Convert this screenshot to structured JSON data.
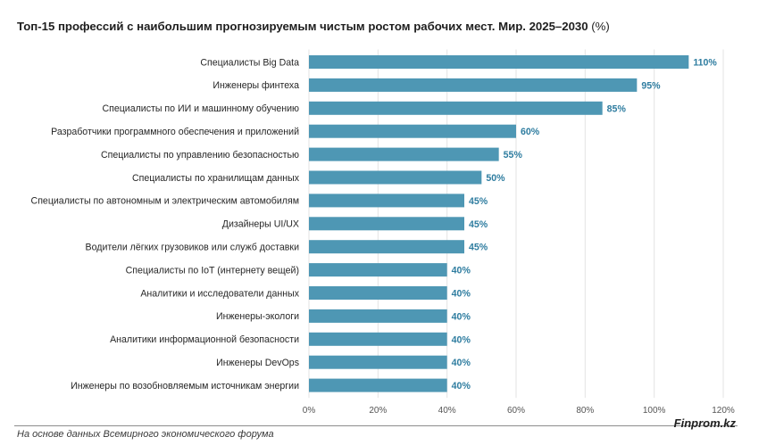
{
  "header": {
    "title": "Топ-15 профессий с наибольшим прогнозируемым чистым ростом рабочих мест. Мир. 2025–2030",
    "unit": "(%)"
  },
  "footer": {
    "source": "На основе данных Всемирного экономического форума",
    "brand": "Finprom.kz"
  },
  "colors": {
    "bar": "#4e97b4",
    "value_label": "#2f7da0",
    "axis_label": "#555555",
    "grid": "#e3e3e3"
  },
  "chart_data": {
    "type": "bar",
    "orientation": "horizontal",
    "categories": [
      "Специалисты Big Data",
      "Инженеры финтеха",
      "Специалисты по ИИ и машинному обучению",
      "Разработчики программного обеспечения и приложений",
      "Специалисты по управлению безопасностью",
      "Специалисты по хранилищам данных",
      "Специалисты по автономным и электрическим автомобилям",
      "Дизайнеры UI/UX",
      "Водители лёгких грузовиков или служб доставки",
      "Специалисты по IoT (интернету вещей)",
      "Аналитики и исследователи данных",
      "Инженеры-экологи",
      "Аналитики информационной безопасности",
      "Инженеры DevOps",
      "Инженеры по возобновляемым источникам энергии"
    ],
    "values": [
      110,
      95,
      85,
      60,
      55,
      50,
      45,
      45,
      45,
      40,
      40,
      40,
      40,
      40,
      40
    ],
    "value_labels": [
      "110%",
      "95%",
      "85%",
      "60%",
      "55%",
      "50%",
      "45%",
      "45%",
      "45%",
      "40%",
      "40%",
      "40%",
      "40%",
      "40%",
      "40%"
    ],
    "xlim": [
      0,
      120
    ],
    "ticks": [
      0,
      20,
      40,
      60,
      80,
      100,
      120
    ],
    "tick_labels": [
      "0%",
      "20%",
      "40%",
      "60%",
      "80%",
      "100%",
      "120%"
    ],
    "grid": true,
    "legend": "none"
  }
}
